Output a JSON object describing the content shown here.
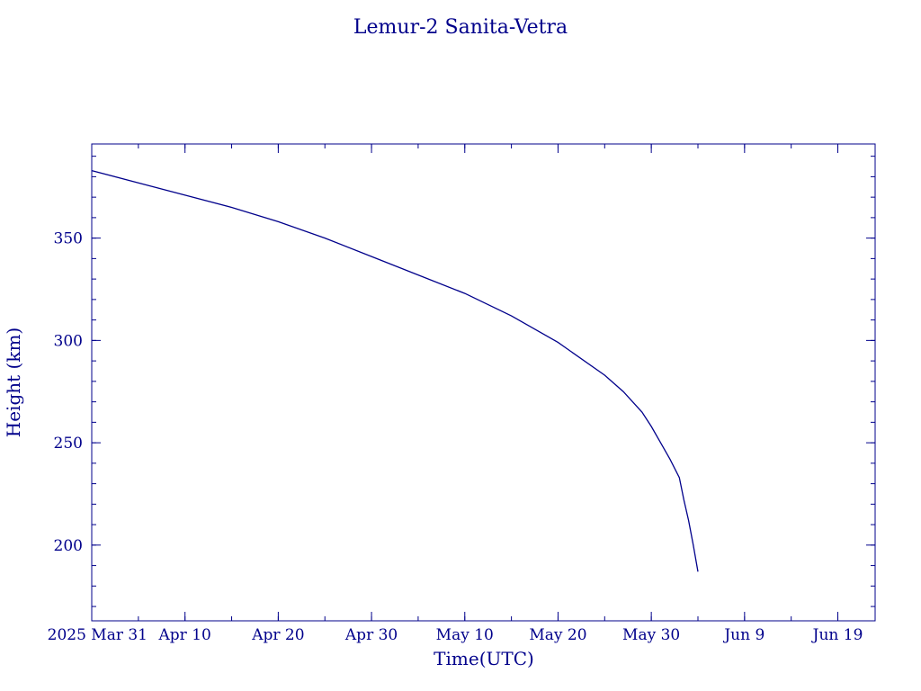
{
  "chart_data": {
    "type": "line",
    "title": "Lemur-2 Sanita-Vetra",
    "xlabel": "Time(UTC)",
    "ylabel": "Height (km)",
    "color": "#00008b",
    "grid": false,
    "x_is_date": true,
    "xlim": [
      "2025-03-31",
      "2025-06-23"
    ],
    "ylim": [
      163,
      396
    ],
    "x_ticks": [
      {
        "date": "2025-03-31",
        "label": "2025 Mar 31"
      },
      {
        "date": "2025-04-10",
        "label": "Apr 10"
      },
      {
        "date": "2025-04-20",
        "label": "Apr 20"
      },
      {
        "date": "2025-04-30",
        "label": "Apr 30"
      },
      {
        "date": "2025-05-10",
        "label": "May 10"
      },
      {
        "date": "2025-05-20",
        "label": "May 20"
      },
      {
        "date": "2025-05-30",
        "label": "May 30"
      },
      {
        "date": "2025-06-09",
        "label": "Jun  9"
      },
      {
        "date": "2025-06-19",
        "label": "Jun 19"
      }
    ],
    "y_ticks": [
      {
        "value": 200,
        "label": "200"
      },
      {
        "value": 250,
        "label": "250"
      },
      {
        "value": 300,
        "label": "300"
      },
      {
        "value": 350,
        "label": "350"
      }
    ],
    "series": [
      {
        "x": [
          "2025-03-31",
          "2025-04-05",
          "2025-04-10",
          "2025-04-15",
          "2025-04-20",
          "2025-04-25",
          "2025-04-30",
          "2025-05-05",
          "2025-05-10",
          "2025-05-15",
          "2025-05-20",
          "2025-05-25",
          "2025-05-27",
          "2025-05-29",
          "2025-05-30",
          "2025-05-31",
          "2025-06-01",
          "2025-06-02",
          "2025-06-02T12:00",
          "2025-06-03",
          "2025-06-03T12:00",
          "2025-06-04"
        ],
        "y": [
          383,
          377,
          371,
          365,
          358,
          350,
          341,
          332,
          323,
          312,
          299,
          283,
          275,
          265,
          258,
          250,
          242,
          233,
          222,
          212,
          200,
          187
        ]
      }
    ]
  }
}
